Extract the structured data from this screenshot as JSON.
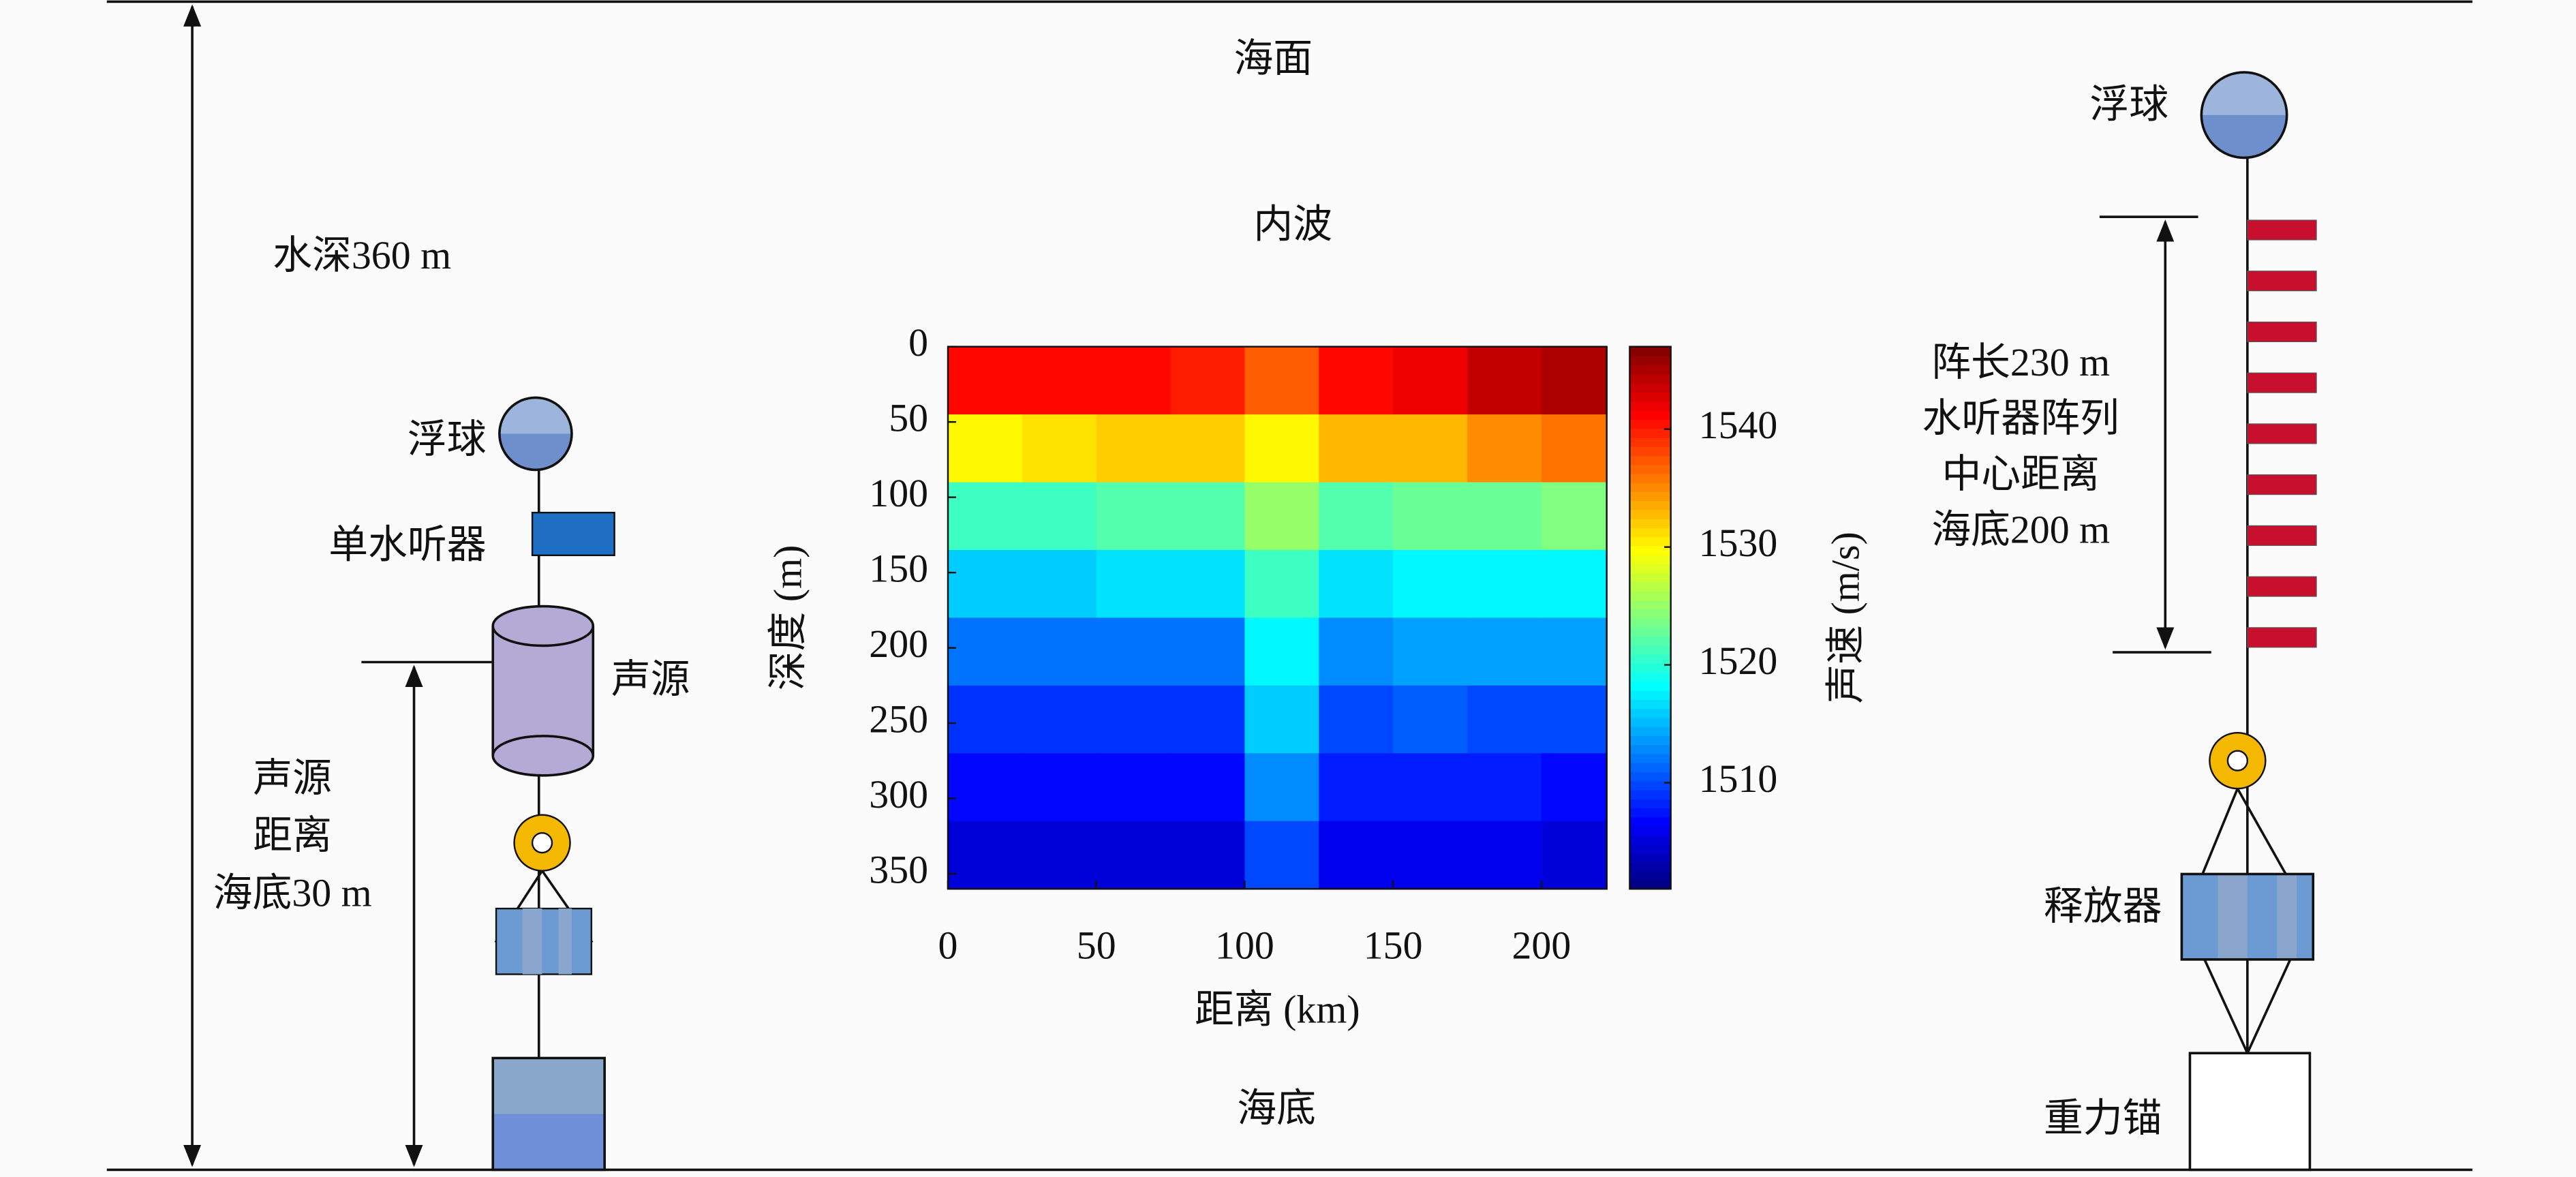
{
  "labels": {
    "sea_surface": "海面",
    "internal_wave": "内波",
    "water_depth": "水深360 m",
    "float_left": "浮球",
    "single_hydrophone": "单水听器",
    "source": "声源",
    "source_height": [
      "声源",
      "距离",
      "海底30 m"
    ],
    "float_right": "浮球",
    "array_info": [
      "阵长230 m",
      "水听器阵列",
      "中心距离",
      "海底200 m"
    ],
    "releaser": "释放器",
    "anchor": "重力锚",
    "seabed": "海底"
  },
  "chart_data": {
    "type": "heatmap",
    "xlabel": "距离 (km)",
    "ylabel": "深度 (m)",
    "colorbar_label": "声速 (m/s)",
    "xlim": [
      0,
      222
    ],
    "ylim": [
      0,
      360
    ],
    "clim": [
      1501,
      1547
    ],
    "xticks": [
      0,
      50,
      100,
      150,
      200
    ],
    "yticks": [
      0,
      50,
      100,
      150,
      200,
      250,
      300,
      350
    ],
    "cticks": [
      1510,
      1520,
      1530,
      1540
    ],
    "x_edges": [
      0,
      25,
      50,
      75,
      100,
      125,
      150,
      175,
      200,
      222
    ],
    "y_edges": [
      0,
      45,
      90,
      135,
      180,
      225,
      270,
      315,
      360
    ],
    "values": [
      [
        1541,
        1541,
        1541,
        1540,
        1537,
        1541,
        1542,
        1544,
        1545
      ],
      [
        1530,
        1531,
        1532,
        1532,
        1530,
        1533,
        1533,
        1535,
        1536
      ],
      [
        1521,
        1521,
        1522,
        1522,
        1525,
        1522,
        1523,
        1523,
        1524
      ],
      [
        1516,
        1516,
        1517,
        1517,
        1521,
        1517,
        1518,
        1518,
        1518
      ],
      [
        1512,
        1512,
        1512,
        1512,
        1518,
        1513,
        1514,
        1514,
        1514
      ],
      [
        1509,
        1509,
        1509,
        1509,
        1516,
        1510,
        1511,
        1510,
        1510
      ],
      [
        1507,
        1507,
        1507,
        1507,
        1513,
        1508,
        1508,
        1508,
        1507
      ],
      [
        1505,
        1505,
        1505,
        1505,
        1510,
        1506,
        1506,
        1506,
        1505
      ]
    ]
  }
}
